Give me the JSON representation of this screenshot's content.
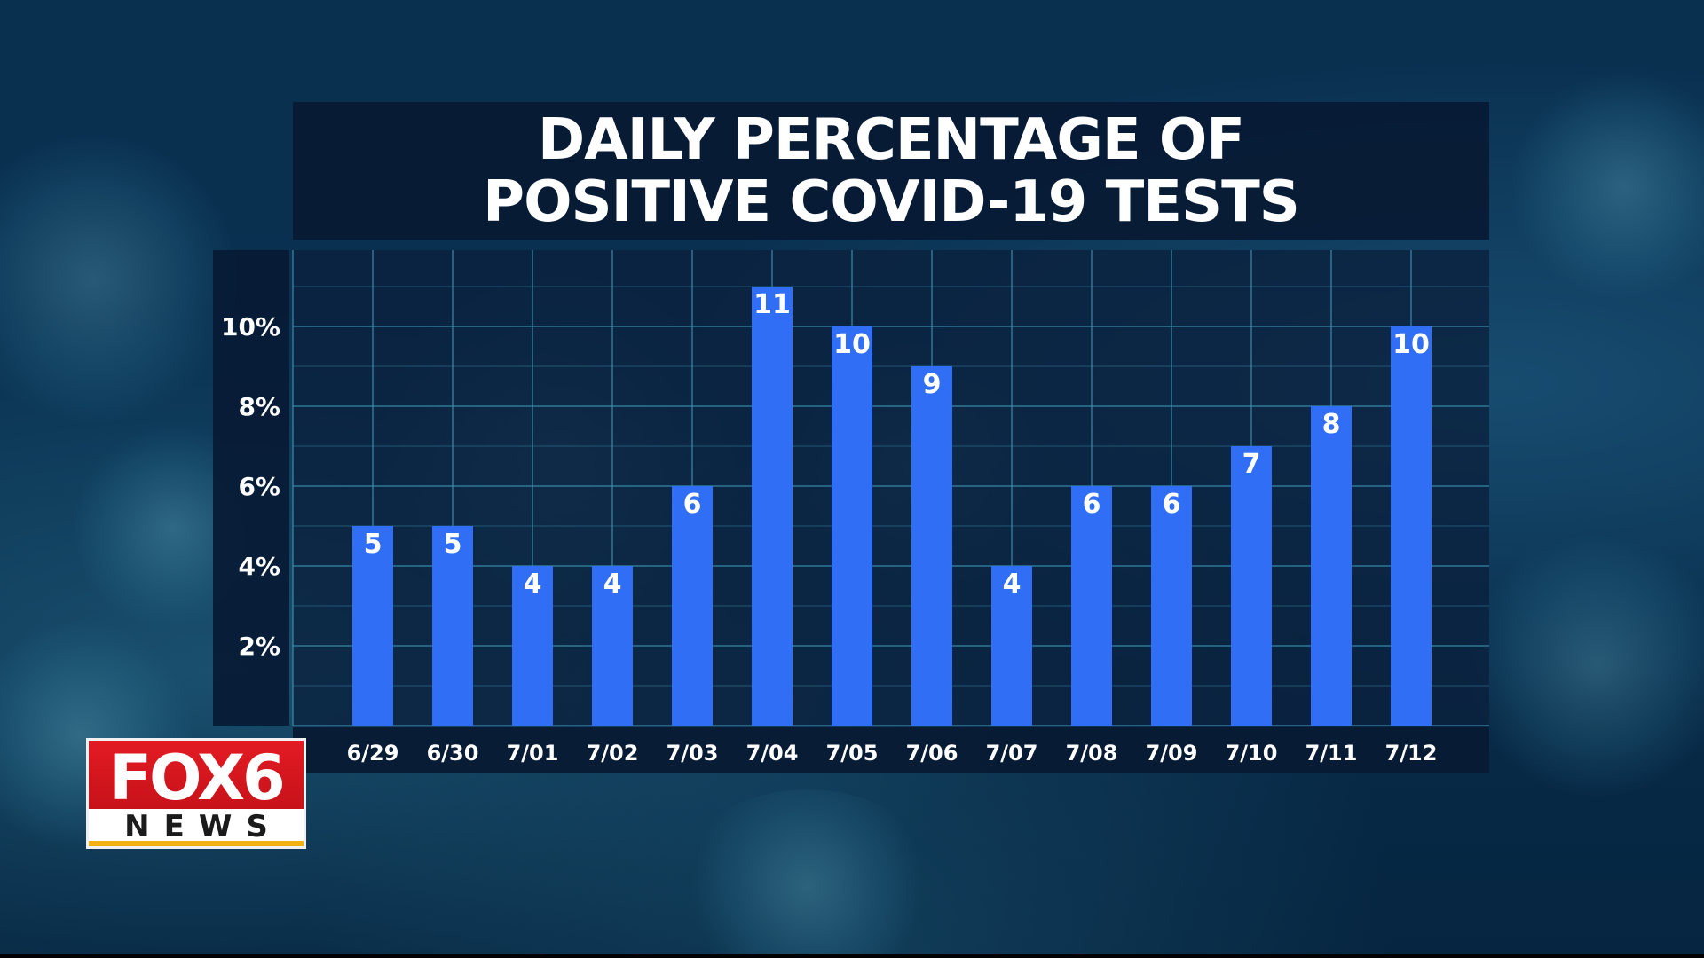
{
  "chart_data": {
    "type": "bar",
    "title": "DAILY PERCENTAGE OF POSITIVE COVID-19 TESTS",
    "title_lines": [
      "DAILY PERCENTAGE OF",
      "POSITIVE COVID-19 TESTS"
    ],
    "categories": [
      "6/29",
      "6/30",
      "7/01",
      "7/02",
      "7/03",
      "7/04",
      "7/05",
      "7/06",
      "7/07",
      "7/08",
      "7/09",
      "7/10",
      "7/11",
      "7/12"
    ],
    "values": [
      5,
      5,
      4,
      4,
      6,
      11,
      10,
      9,
      4,
      6,
      6,
      7,
      8,
      10
    ],
    "y_ticks": [
      2,
      4,
      6,
      8,
      10
    ],
    "y_tick_labels": [
      "2%",
      "4%",
      "6%",
      "8%",
      "10%"
    ],
    "ylim": [
      0,
      12
    ],
    "xlabel": "",
    "ylabel": "",
    "grid": true,
    "bar_color": "#2f6ef5",
    "label_color": "#ffffff"
  },
  "branding": {
    "logo_top": "FOX6",
    "logo_bottom": "NEWS",
    "logo_red": "#e31b23",
    "logo_gold": "#f2b111"
  },
  "background": {
    "theme": "coronavirus",
    "color": "#0a3050"
  }
}
